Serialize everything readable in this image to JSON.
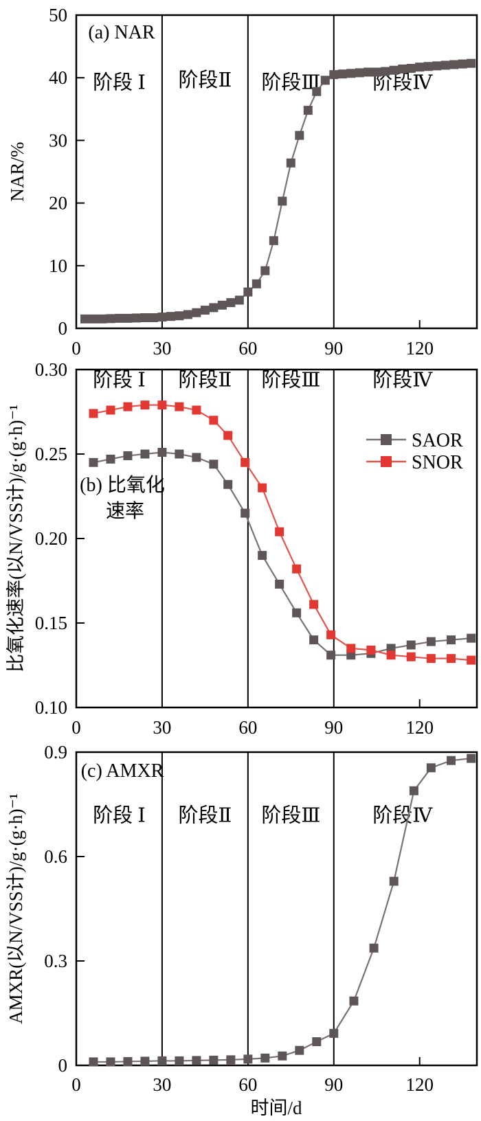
{
  "figure": {
    "xlabel": "时间/d",
    "colors": {
      "axis": "#000000",
      "nar_marker": "#5e5656",
      "nar_line": "#7b7270",
      "saor_marker": "#5e5656",
      "saor_line": "#7b7270",
      "snor_marker": "#e13832",
      "snor_line": "#e4534c"
    }
  },
  "chart_data": [
    {
      "type": "line",
      "id": "a",
      "panel_label": "(a) NAR",
      "panel_label_pos": {
        "x": 16,
        "y": 46.4
      },
      "ylabel": "NAR/%",
      "xlim": [
        0,
        140
      ],
      "ylim": [
        0,
        50
      ],
      "xticks": [
        0,
        30,
        60,
        90,
        120
      ],
      "xtick_labels": [
        "0",
        "30",
        "60",
        "90",
        "120"
      ],
      "yticks": [
        0,
        10,
        20,
        30,
        40,
        50
      ],
      "ytick_labels": [
        "0",
        "10",
        "20",
        "30",
        "40",
        "50"
      ],
      "stage_dividers_x": [
        30,
        60,
        90
      ],
      "stage_labels": [
        {
          "text": "阶段 Ⅰ",
          "x": 15,
          "y": 38.2
        },
        {
          "text": "阶段Ⅱ",
          "x": 45,
          "y": 38.6
        },
        {
          "text": "阶段Ⅲ",
          "x": 75,
          "y": 38.2
        },
        {
          "text": "阶段Ⅳ",
          "x": 114,
          "y": 38.2
        }
      ],
      "series": [
        {
          "name": "NAR",
          "marker_color_key": "nar_marker",
          "line_color_key": "nar_line",
          "x": [
            3,
            6,
            9,
            12,
            15,
            18,
            21,
            24,
            27,
            30,
            33,
            36,
            39,
            42,
            45,
            48,
            51,
            54,
            57,
            60,
            63,
            66,
            69,
            72,
            75,
            78,
            81,
            84,
            87,
            90,
            93,
            96,
            99,
            102,
            105,
            108,
            111,
            114,
            117,
            120,
            123,
            126,
            129,
            132,
            135,
            138
          ],
          "values": [
            1.5,
            1.5,
            1.5,
            1.55,
            1.6,
            1.6,
            1.65,
            1.7,
            1.7,
            1.8,
            1.9,
            2.0,
            2.2,
            2.5,
            2.9,
            3.3,
            3.7,
            4.1,
            4.5,
            5.8,
            7.1,
            9.2,
            14.0,
            20.3,
            26.4,
            30.8,
            34.8,
            37.8,
            39.6,
            40.5,
            40.6,
            40.7,
            40.8,
            40.9,
            40.9,
            41.0,
            41.2,
            41.4,
            41.5,
            41.7,
            41.8,
            41.9,
            42.0,
            42.1,
            42.2,
            42.3
          ]
        }
      ]
    },
    {
      "type": "line",
      "id": "b",
      "panel_label_line1": "(b) 比氧化",
      "panel_label_line2": "速率",
      "panel_label_pos": {
        "x": 16,
        "y": 0.2315
      },
      "panel_label_pos2": {
        "x": 17,
        "y": 0.2155
      },
      "ylabel": "比氧化速率(以N/VSS计)/g·(g·h)⁻¹",
      "xlim": [
        0,
        140
      ],
      "ylim": [
        0.1,
        0.3
      ],
      "xticks": [
        0,
        30,
        60,
        90,
        120
      ],
      "xtick_labels": [
        "0",
        "30",
        "60",
        "90",
        "120"
      ],
      "yticks": [
        0.1,
        0.15,
        0.2,
        0.25,
        0.3
      ],
      "ytick_labels": [
        "0.10",
        "0.15",
        "0.20",
        "0.25",
        "0.30"
      ],
      "stage_dividers_x": [
        30,
        60,
        90
      ],
      "stage_labels": [
        {
          "text": "阶段 Ⅰ",
          "x": 15,
          "y": 0.29
        },
        {
          "text": "阶段Ⅱ",
          "x": 45,
          "y": 0.29
        },
        {
          "text": "阶段Ⅲ",
          "x": 75,
          "y": 0.29
        },
        {
          "text": "阶段Ⅳ",
          "x": 114,
          "y": 0.29
        }
      ],
      "legend": {
        "entries": [
          {
            "label": "SAOR",
            "series": 0
          },
          {
            "label": "SNOR",
            "series": 1
          }
        ]
      },
      "series": [
        {
          "name": "SAOR",
          "marker_color_key": "saor_marker",
          "line_color_key": "saor_line",
          "x": [
            6,
            12,
            18,
            24,
            30,
            36,
            42,
            48,
            53,
            59,
            65,
            71,
            77,
            83,
            89,
            96,
            103,
            110,
            117,
            124,
            131,
            138
          ],
          "values": [
            0.245,
            0.247,
            0.249,
            0.25,
            0.251,
            0.25,
            0.248,
            0.244,
            0.232,
            0.215,
            0.19,
            0.173,
            0.156,
            0.14,
            0.131,
            0.131,
            0.132,
            0.135,
            0.137,
            0.139,
            0.14,
            0.141
          ]
        },
        {
          "name": "SNOR",
          "marker_color_key": "snor_marker",
          "line_color_key": "snor_line",
          "x": [
            6,
            12,
            18,
            24,
            30,
            36,
            42,
            48,
            53,
            59,
            65,
            71,
            77,
            83,
            89,
            96,
            103,
            110,
            117,
            124,
            131,
            138
          ],
          "values": [
            0.274,
            0.276,
            0.278,
            0.279,
            0.279,
            0.278,
            0.276,
            0.27,
            0.261,
            0.245,
            0.23,
            0.204,
            0.182,
            0.161,
            0.143,
            0.135,
            0.134,
            0.131,
            0.13,
            0.129,
            0.129,
            0.128
          ]
        }
      ]
    },
    {
      "type": "line",
      "id": "c",
      "panel_label": "(c) AMXR",
      "panel_label_pos": {
        "x": 16,
        "y": 0.832
      },
      "ylabel": "AMXR(以N/VSS计)/g·(g·h)⁻¹",
      "xlim": [
        0,
        140
      ],
      "ylim": [
        0,
        0.9
      ],
      "xticks": [
        0,
        30,
        60,
        90,
        120
      ],
      "xtick_labels": [
        "0",
        "30",
        "60",
        "90",
        "120"
      ],
      "yticks": [
        0,
        0.3,
        0.6,
        0.9
      ],
      "ytick_labels": [
        "0",
        "0.3",
        "0.6",
        "0.9"
      ],
      "stage_dividers_x": [
        30,
        60,
        90
      ],
      "stage_labels": [
        {
          "text": "阶段 Ⅰ",
          "x": 15,
          "y": 0.7
        },
        {
          "text": "阶段Ⅱ",
          "x": 45,
          "y": 0.7
        },
        {
          "text": "阶段Ⅲ",
          "x": 75,
          "y": 0.7
        },
        {
          "text": "阶段Ⅳ",
          "x": 114,
          "y": 0.7
        }
      ],
      "series": [
        {
          "name": "AMXR",
          "marker_color_key": "nar_marker",
          "line_color_key": "nar_line",
          "x": [
            6,
            12,
            18,
            24,
            30,
            36,
            42,
            48,
            54,
            60,
            66,
            72,
            78,
            84,
            90,
            97,
            104,
            111,
            118,
            124,
            131,
            138
          ],
          "values": [
            0.01,
            0.01,
            0.011,
            0.012,
            0.013,
            0.013,
            0.014,
            0.015,
            0.016,
            0.018,
            0.021,
            0.027,
            0.043,
            0.068,
            0.092,
            0.185,
            0.337,
            0.529,
            0.789,
            0.855,
            0.876,
            0.882
          ]
        }
      ]
    }
  ]
}
